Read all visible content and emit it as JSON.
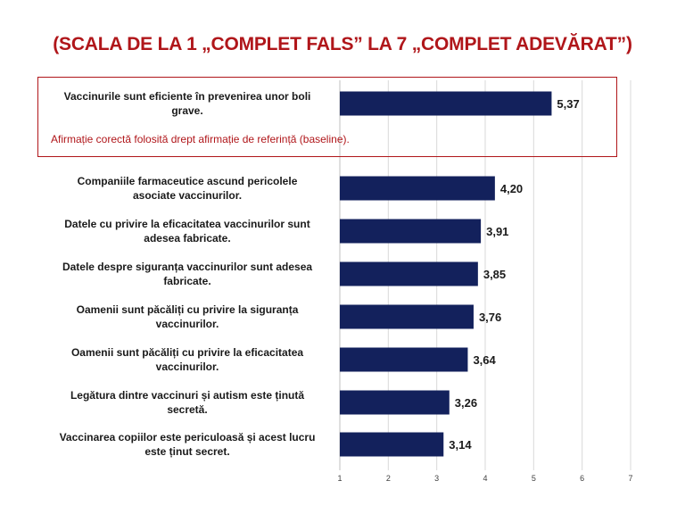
{
  "title": "(SCALA DE LA 1 „COMPLET FALS” LA 7 „COMPLET ADEVĂRAT”)",
  "baseline_note": "Afirmație corectă folosită drept afirmație de referință (baseline).",
  "colors": {
    "bar": "#13215c",
    "accent": "#b0161a",
    "grid": "#d9d9d9"
  },
  "chart_data": {
    "type": "bar",
    "orientation": "horizontal",
    "title": "(SCALA DE LA 1 „COMPLET FALS” LA 7 „COMPLET ADEVĂRAT”)",
    "categories": [
      [
        "Vaccinurile sunt eficiente în prevenirea unor boli",
        "grave."
      ],
      [
        "Companiile farmaceutice ascund pericolele",
        "asociate vaccinurilor."
      ],
      [
        "Datele cu privire la eficacitatea vaccinurilor sunt",
        "adesea fabricate."
      ],
      [
        "Datele despre siguranța vaccinurilor sunt adesea",
        "fabricate."
      ],
      [
        "Oamenii sunt păcăliți cu privire la siguranța",
        "vaccinurilor."
      ],
      [
        "Oamenii sunt păcăliți cu privire la eficacitatea",
        "vaccinurilor."
      ],
      [
        "Legătura dintre vaccinuri și autism este ținută",
        "secretă."
      ],
      [
        "Vaccinarea copiilor este periculoasă și acest lucru",
        "este ținut secret."
      ]
    ],
    "values": [
      5.37,
      4.2,
      3.91,
      3.85,
      3.76,
      3.64,
      3.26,
      3.14
    ],
    "value_labels": [
      "5,37",
      "4,20",
      "3,91",
      "3,85",
      "3,76",
      "3,64",
      "3,26",
      "3,14"
    ],
    "xlim": [
      1,
      7
    ],
    "xticks": [
      "1",
      "2",
      "3",
      "4",
      "5",
      "6",
      "7"
    ],
    "grid": true,
    "legend": "none"
  }
}
